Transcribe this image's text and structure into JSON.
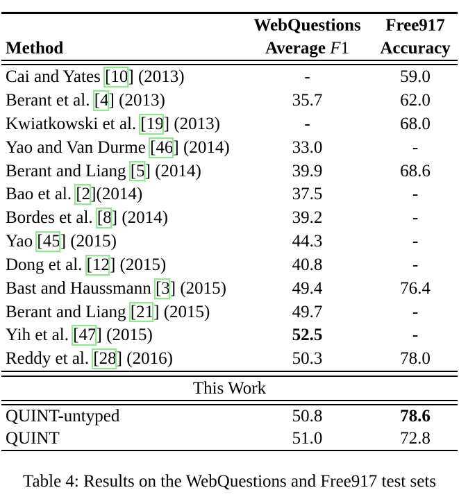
{
  "table": {
    "header": {
      "col1": "Method",
      "col2_line1": "WebQuestions",
      "col2_line2_bold": "Average ",
      "col2_line2_f": "F",
      "col2_line2_one": "1",
      "col3_line1": "Free917",
      "col3_line2": "Accuracy"
    },
    "rows": [
      {
        "pre": "Cai and Yates ",
        "cite": "[10]",
        "post": " (2013)",
        "f1": "-",
        "acc": "59.0"
      },
      {
        "pre": "Berant et al. ",
        "cite": "[4]",
        "post": " (2013)",
        "f1": "35.7",
        "acc": "62.0"
      },
      {
        "pre": "Kwiatkowski et al. ",
        "cite": "[19]",
        "post": " (2013)",
        "f1": "-",
        "acc": "68.0"
      },
      {
        "pre": "Yao and Van Durme ",
        "cite": "[46]",
        "post": " (2014)",
        "f1": "33.0",
        "acc": "-"
      },
      {
        "pre": "Berant and Liang ",
        "cite": "[5]",
        "post": " (2014)",
        "f1": "39.9",
        "acc": "68.6"
      },
      {
        "pre": "Bao et al. ",
        "cite": "[2]",
        "post": "(2014)",
        "f1": "37.5",
        "acc": "-"
      },
      {
        "pre": "Bordes et al. ",
        "cite": "[8]",
        "post": " (2014)",
        "f1": "39.2",
        "acc": "-"
      },
      {
        "pre": "Yao ",
        "cite": "[45]",
        "post": " (2015)",
        "f1": "44.3",
        "acc": "-"
      },
      {
        "pre": "Dong et al. ",
        "cite": "[12]",
        "post": " (2015)",
        "f1": "40.8",
        "acc": "-"
      },
      {
        "pre": "Bast and Haussmann ",
        "cite": "[3]",
        "post": " (2015)",
        "f1": "49.4",
        "acc": "76.4"
      },
      {
        "pre": "Berant and Liang ",
        "cite": "[21]",
        "post": " (2015)",
        "f1": "49.7",
        "acc": "-"
      },
      {
        "pre": "Yih et al. ",
        "cite": "[47]",
        "post": " (2015)",
        "f1": "52.5",
        "acc": "-"
      },
      {
        "pre": "Reddy et al. ",
        "cite": "[28]",
        "post": " (2016)",
        "f1": "50.3",
        "acc": "78.0"
      }
    ],
    "section_label": "This Work",
    "work_rows": [
      {
        "method": "QUINT-untyped",
        "f1": "50.8",
        "acc": "78.6"
      },
      {
        "method": "QUINT",
        "f1": "51.0",
        "acc": "72.8"
      }
    ],
    "caption": "Table 4: Results on the WebQuestions and Free917 test sets"
  },
  "colors": {
    "annotation_green": "#85ee85",
    "text": "#000000",
    "background": "#ffffff"
  }
}
